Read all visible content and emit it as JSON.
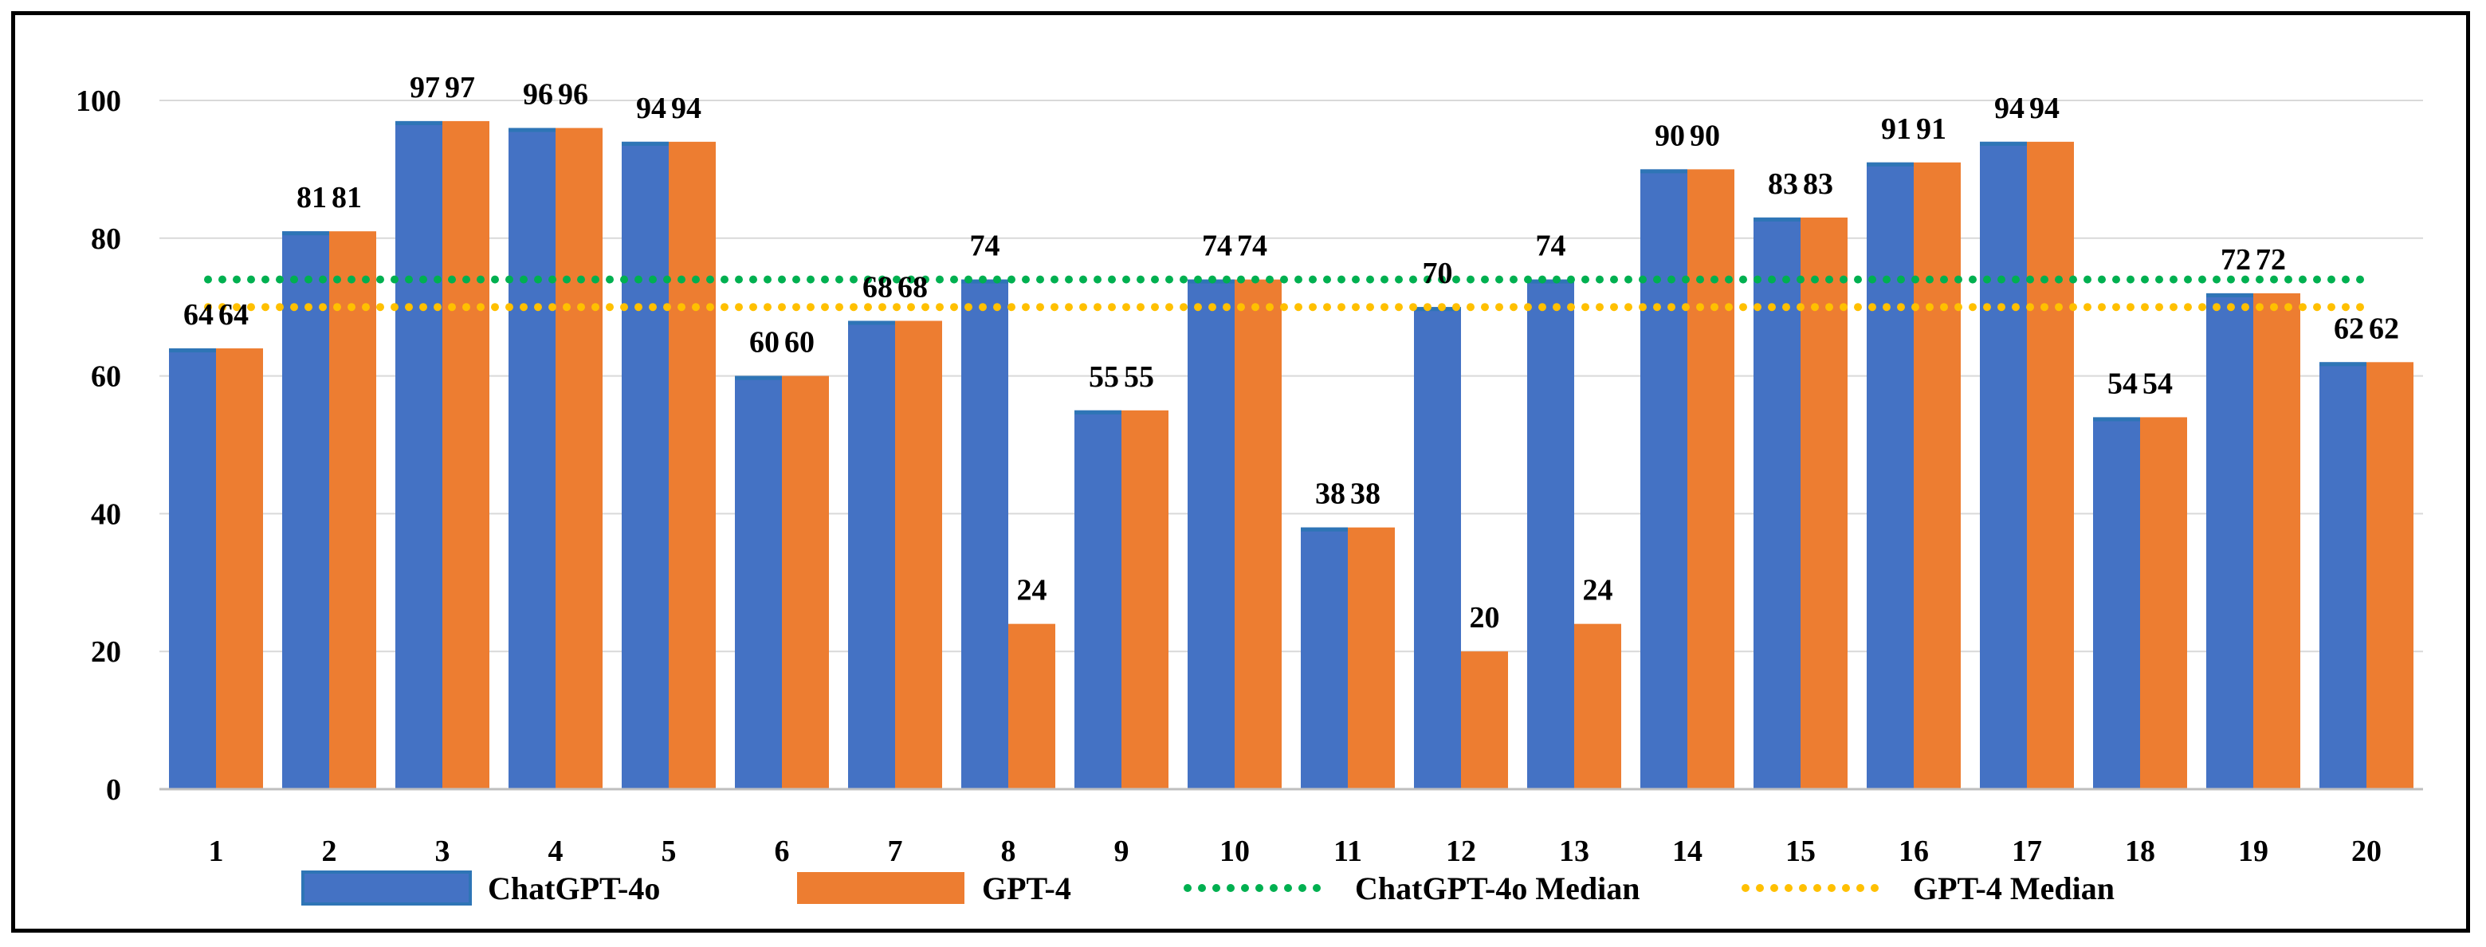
{
  "chart_data": {
    "type": "bar",
    "title": "",
    "xlabel": "",
    "ylabel": "",
    "categories": [
      "1",
      "2",
      "3",
      "4",
      "5",
      "6",
      "7",
      "8",
      "9",
      "10",
      "11",
      "12",
      "13",
      "14",
      "15",
      "16",
      "17",
      "18",
      "19",
      "20"
    ],
    "series": [
      {
        "name": "ChatGPT-4o",
        "color": "#4472C4",
        "edge": "#2E75B6",
        "values": [
          64,
          81,
          97,
          96,
          94,
          60,
          68,
          74,
          55,
          74,
          38,
          70,
          74,
          90,
          83,
          91,
          94,
          54,
          72,
          62
        ]
      },
      {
        "name": "GPT-4",
        "color": "#ED7D31",
        "values": [
          64,
          81,
          97,
          96,
          94,
          60,
          68,
          24,
          55,
          74,
          38,
          20,
          24,
          90,
          83,
          91,
          94,
          54,
          72,
          62
        ]
      }
    ],
    "medians": [
      {
        "name": "ChatGPT-4o Median",
        "value": 74,
        "color": "#00B050"
      },
      {
        "name": "GPT-4 Median",
        "value": 70,
        "color": "#FFC000"
      }
    ],
    "yticks": [
      0,
      20,
      40,
      60,
      80,
      100
    ],
    "ylim": [
      0,
      100
    ],
    "grid": true,
    "legend_position": "bottom"
  }
}
